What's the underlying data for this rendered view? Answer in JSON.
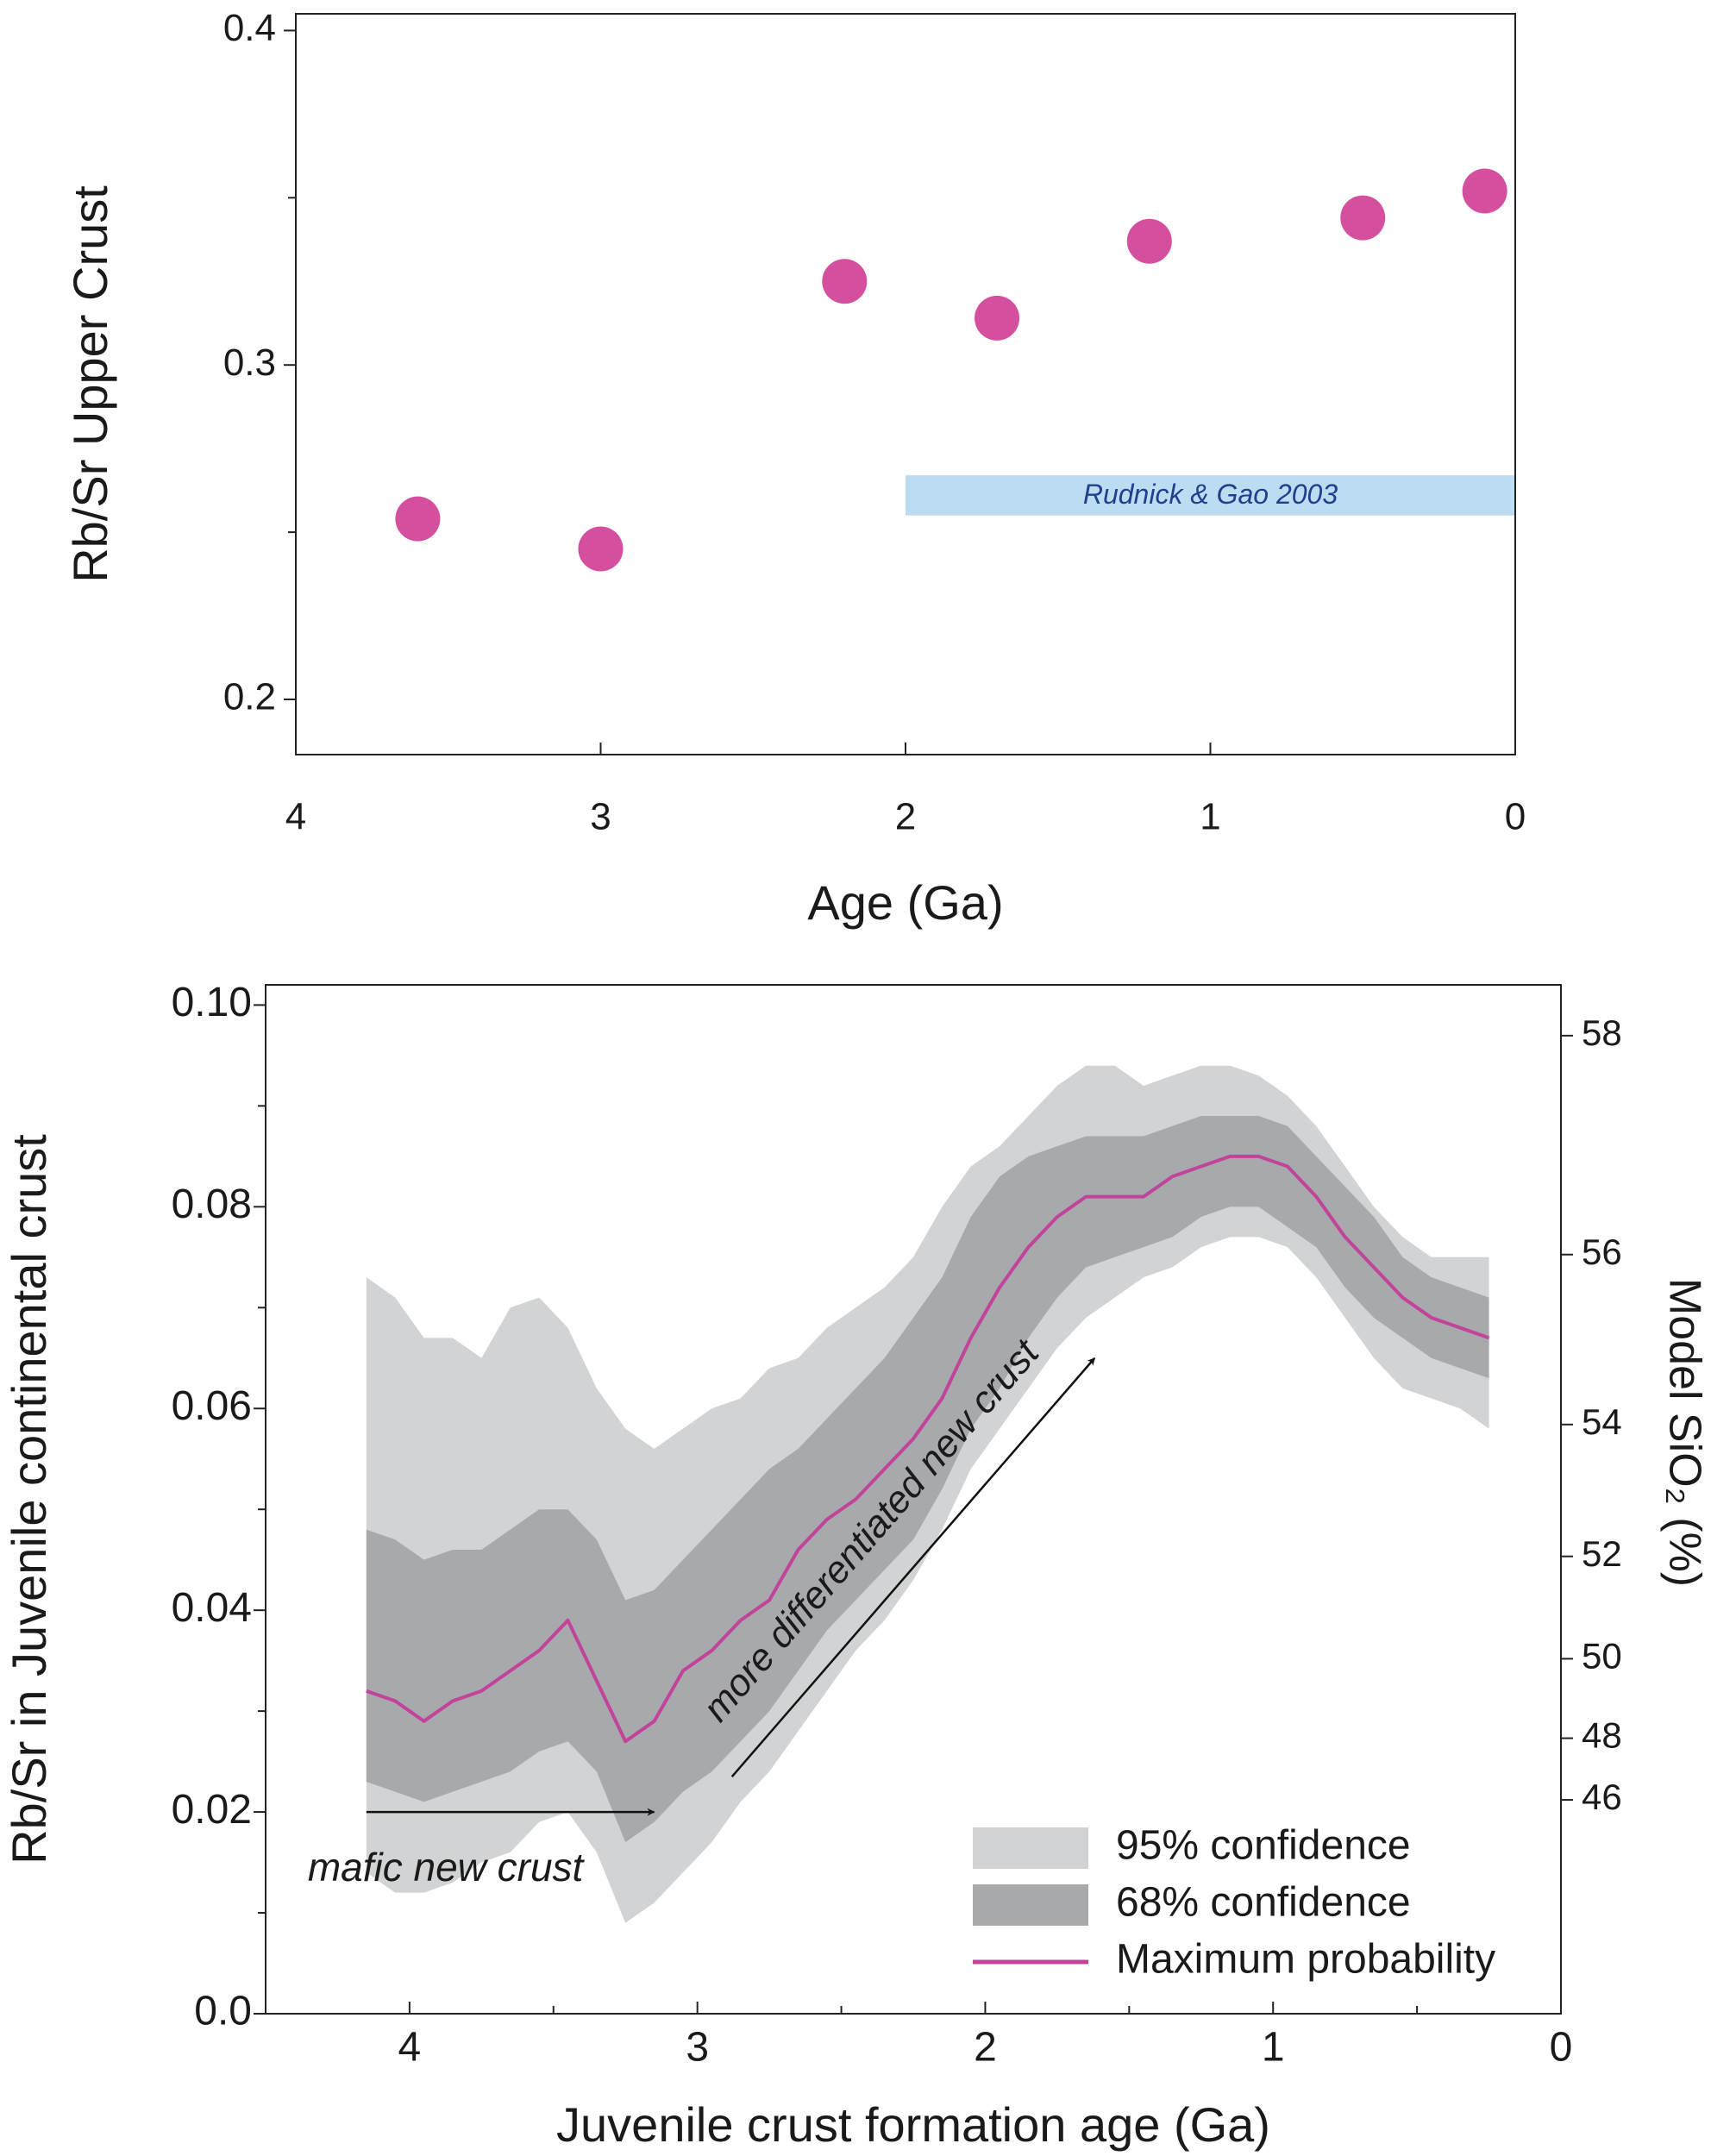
{
  "chart_data": [
    {
      "type": "scatter",
      "xlabel": "Age (Ga)",
      "ylabel": "Rb/Sr Upper Crust",
      "x": [
        3.6,
        3.0,
        2.2,
        1.7,
        1.2,
        0.5,
        0.1
      ],
      "values": [
        0.254,
        0.245,
        0.325,
        0.314,
        0.337,
        0.344,
        0.352
      ],
      "color": "#d4509f",
      "xlim": [
        4,
        0
      ],
      "ylim": [
        0.1835,
        0.405
      ],
      "xticks": [
        4,
        3,
        2,
        1,
        0
      ],
      "yticks": [
        0.2,
        0.3,
        0.4
      ],
      "yticks_minor": [
        0.25,
        0.35
      ],
      "reference_band": {
        "label": "Rudnick & Gao 2003",
        "x": [
          2,
          0
        ],
        "y": [
          0.255,
          0.267
        ],
        "color": "#bcdcf2"
      }
    },
    {
      "type": "band",
      "xlabel": "Juvenile crust formation age (Ga)",
      "ylabel": "Rb/Sr in Juvenile continental crust",
      "y2label": "Model SiO₂ (%)",
      "x": [
        4.15,
        4.05,
        3.95,
        3.85,
        3.75,
        3.65,
        3.55,
        3.45,
        3.35,
        3.25,
        3.15,
        3.05,
        2.95,
        2.85,
        2.75,
        2.65,
        2.55,
        2.45,
        2.35,
        2.25,
        2.15,
        2.05,
        1.95,
        1.85,
        1.75,
        1.65,
        1.55,
        1.45,
        1.35,
        1.25,
        1.15,
        1.05,
        0.95,
        0.85,
        0.75,
        0.65,
        0.55,
        0.45,
        0.35,
        0.25
      ],
      "series": [
        {
          "name": "95% confidence",
          "color": "#d1d3d4",
          "upper": [
            0.073,
            0.071,
            0.067,
            0.067,
            0.065,
            0.07,
            0.071,
            0.068,
            0.062,
            0.058,
            0.056,
            0.058,
            0.06,
            0.061,
            0.064,
            0.065,
            0.068,
            0.07,
            0.072,
            0.075,
            0.08,
            0.084,
            0.086,
            0.089,
            0.092,
            0.094,
            0.094,
            0.092,
            0.093,
            0.094,
            0.094,
            0.093,
            0.091,
            0.088,
            0.084,
            0.08,
            0.077,
            0.075,
            0.075,
            0.075
          ],
          "lower": [
            0.014,
            0.012,
            0.012,
            0.013,
            0.015,
            0.016,
            0.019,
            0.02,
            0.016,
            0.009,
            0.011,
            0.014,
            0.017,
            0.021,
            0.024,
            0.028,
            0.032,
            0.036,
            0.039,
            0.043,
            0.048,
            0.054,
            0.058,
            0.062,
            0.066,
            0.069,
            0.071,
            0.073,
            0.074,
            0.076,
            0.077,
            0.077,
            0.076,
            0.073,
            0.069,
            0.065,
            0.062,
            0.061,
            0.06,
            0.058
          ]
        },
        {
          "name": "68% confidence",
          "color": "#a7a9ac",
          "upper": [
            0.048,
            0.047,
            0.045,
            0.046,
            0.046,
            0.048,
            0.05,
            0.05,
            0.047,
            0.041,
            0.042,
            0.045,
            0.048,
            0.051,
            0.054,
            0.056,
            0.059,
            0.062,
            0.065,
            0.069,
            0.073,
            0.079,
            0.083,
            0.085,
            0.086,
            0.087,
            0.087,
            0.087,
            0.088,
            0.089,
            0.089,
            0.089,
            0.088,
            0.085,
            0.082,
            0.079,
            0.075,
            0.073,
            0.072,
            0.071
          ],
          "lower": [
            0.023,
            0.022,
            0.021,
            0.022,
            0.023,
            0.024,
            0.026,
            0.027,
            0.024,
            0.017,
            0.019,
            0.022,
            0.024,
            0.027,
            0.03,
            0.034,
            0.038,
            0.041,
            0.044,
            0.047,
            0.052,
            0.058,
            0.062,
            0.067,
            0.071,
            0.074,
            0.075,
            0.076,
            0.077,
            0.079,
            0.08,
            0.08,
            0.078,
            0.076,
            0.072,
            0.069,
            0.067,
            0.065,
            0.064,
            0.063
          ]
        },
        {
          "name": "Maximum probability",
          "color": "#c2449a",
          "values": [
            0.032,
            0.031,
            0.029,
            0.031,
            0.032,
            0.034,
            0.036,
            0.039,
            0.033,
            0.027,
            0.029,
            0.034,
            0.036,
            0.039,
            0.041,
            0.046,
            0.049,
            0.051,
            0.054,
            0.057,
            0.061,
            0.067,
            0.072,
            0.076,
            0.079,
            0.081,
            0.081,
            0.081,
            0.083,
            0.084,
            0.085,
            0.085,
            0.084,
            0.081,
            0.077,
            0.074,
            0.071,
            0.069,
            0.068,
            0.067
          ]
        }
      ],
      "xlim": [
        4.5,
        0
      ],
      "ylim": [
        0,
        0.102
      ],
      "xticks": [
        4,
        3,
        2,
        1,
        0
      ],
      "xticks_minor": [
        3.5,
        2.5,
        1.5,
        0.5
      ],
      "yticks": [
        {
          "value": 0,
          "label": "0.0"
        },
        0.02,
        0.04,
        0.06,
        0.08,
        {
          "value": 0.1,
          "label": "0.10"
        }
      ],
      "yticks_minor": [
        0.01,
        0.03,
        0.05,
        0.07,
        0.09
      ],
      "y2_scale": {
        "type": "exp",
        "a": -9.682,
        "b": 0.1267
      },
      "y2ticks": [
        46,
        48,
        50,
        52,
        54,
        56,
        58
      ],
      "legend": "lower right",
      "annotations": [
        {
          "text": "mafic new crust",
          "x": [
            4.15,
            3.15
          ],
          "y": [
            0.02,
            0.02
          ]
        },
        {
          "text": "more differentiated new crust",
          "x": [
            2.88,
            1.62
          ],
          "y": [
            0.0235,
            0.065
          ]
        }
      ]
    }
  ]
}
